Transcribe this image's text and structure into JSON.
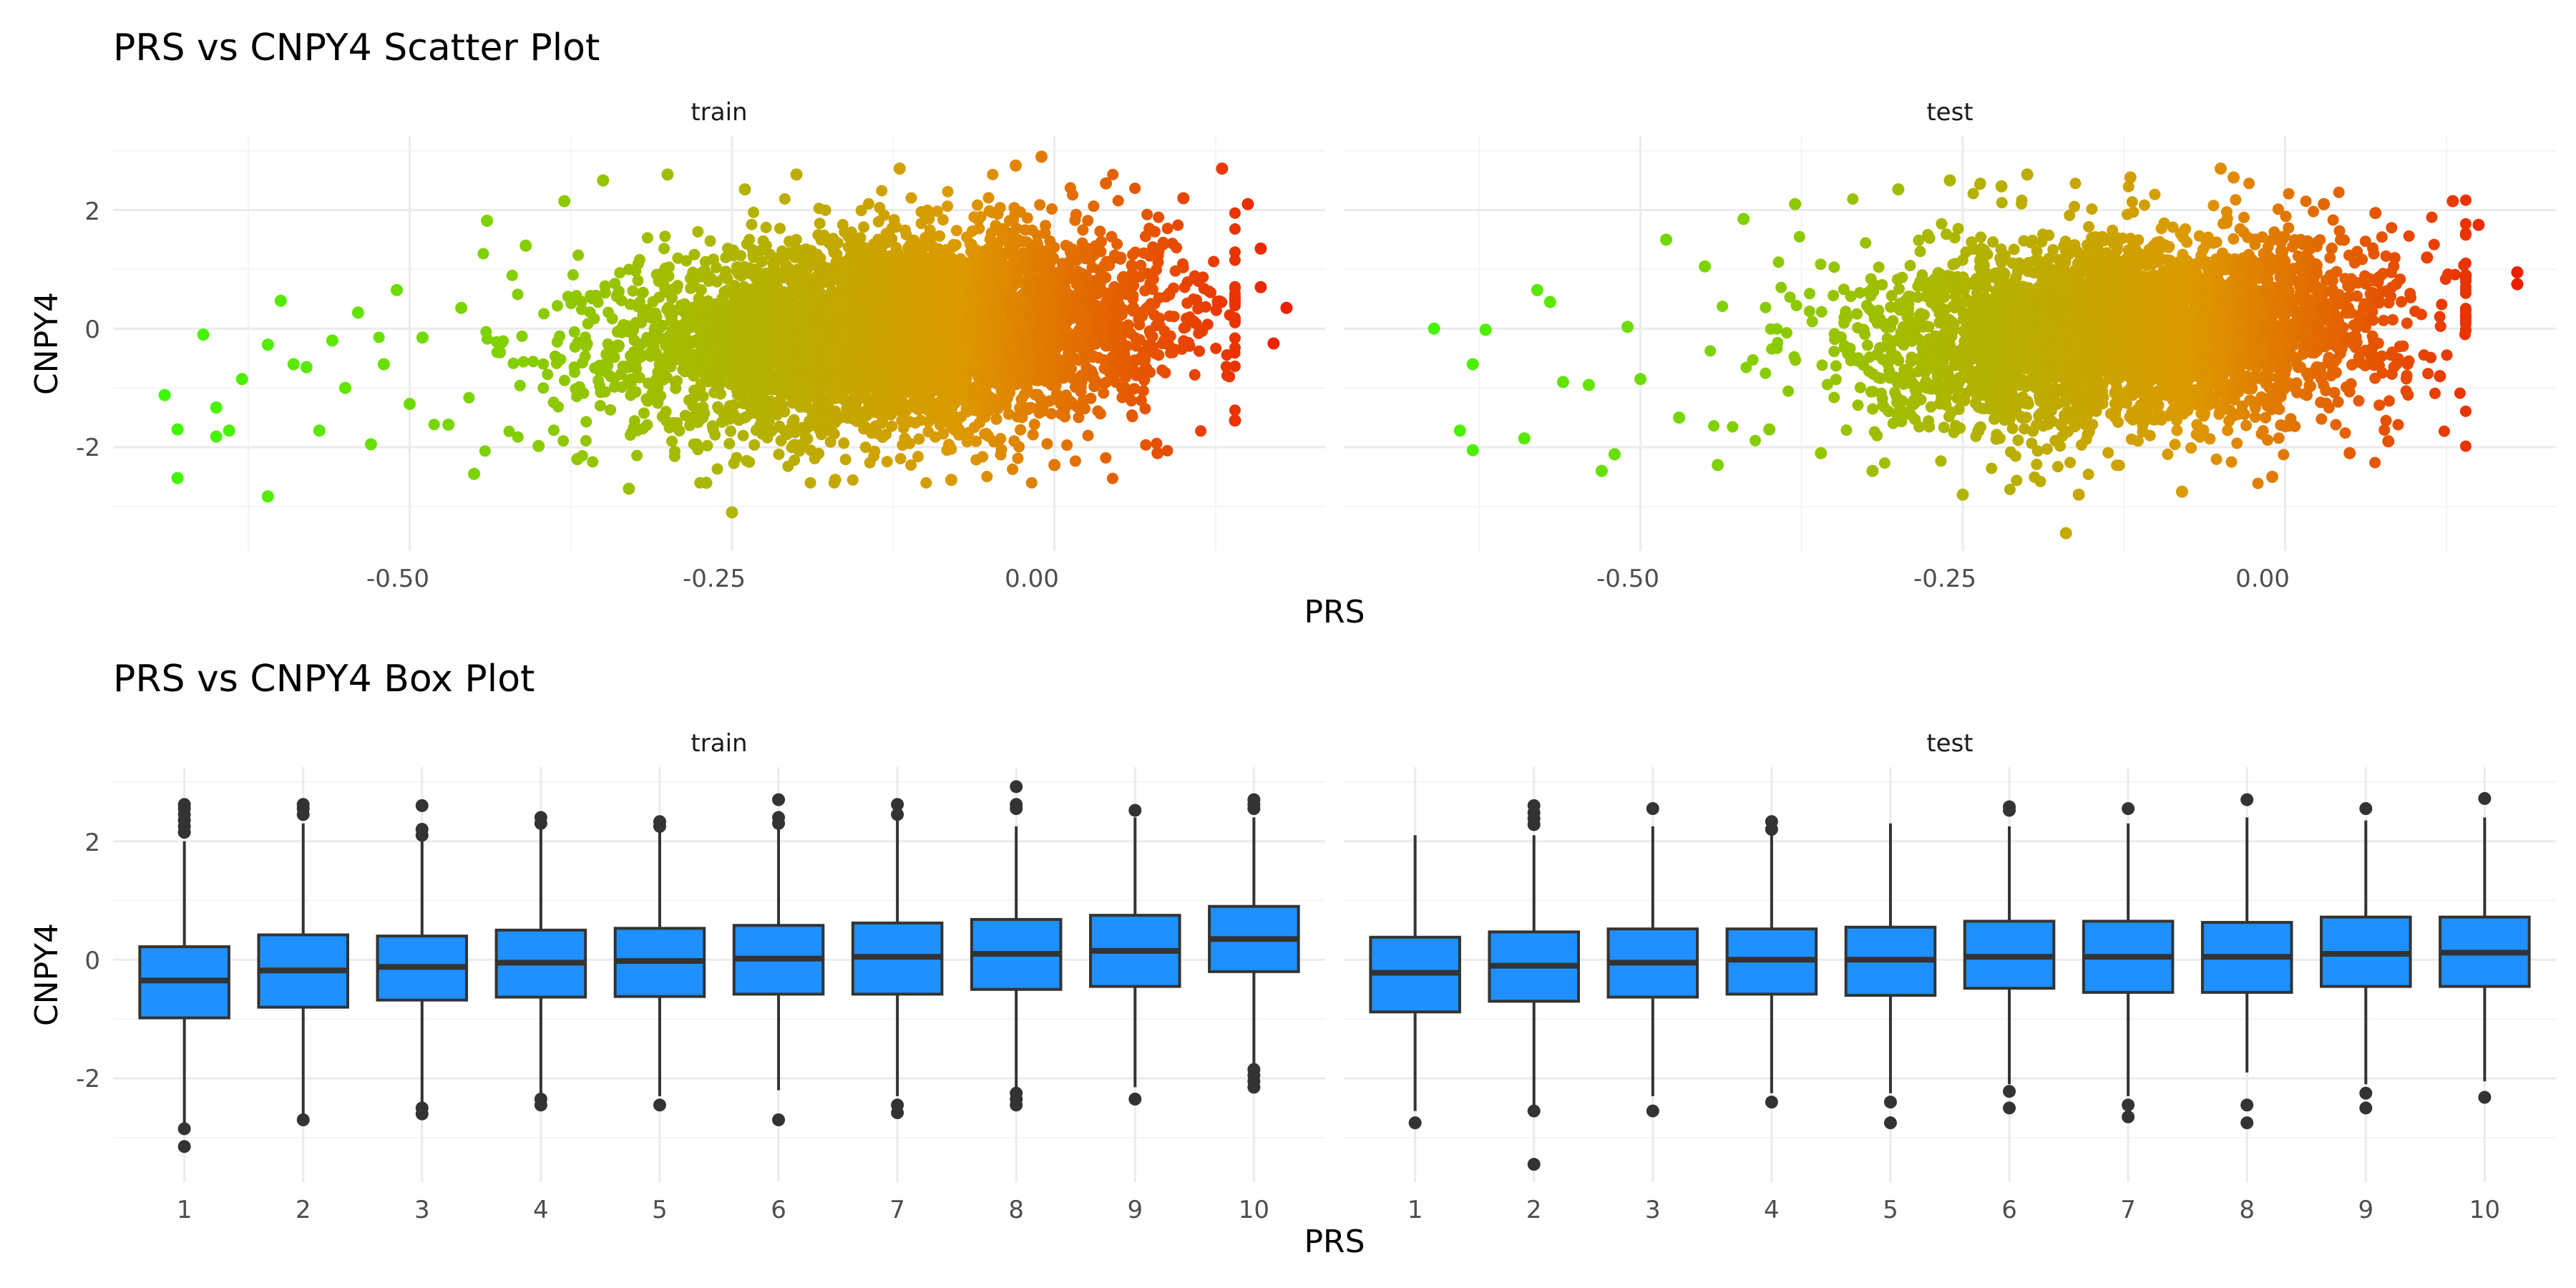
{
  "scatter": {
    "title": "PRS vs CNPY4 Scatter Plot",
    "xlabel": "PRS",
    "ylabel": "CNPY4",
    "panels": [
      {
        "label": "train"
      },
      {
        "label": "test"
      }
    ],
    "x_ticks": [
      "-0.50",
      "-0.25",
      "0.00"
    ],
    "y_ticks": [
      "-2",
      "0",
      "2"
    ]
  },
  "box": {
    "title": "PRS vs CNPY4 Box Plot",
    "xlabel": "PRS",
    "ylabel": "CNPY4",
    "panels": [
      {
        "label": "train"
      },
      {
        "label": "test"
      }
    ],
    "x_ticks": [
      "1",
      "2",
      "3",
      "4",
      "5",
      "6",
      "7",
      "8",
      "9",
      "10"
    ],
    "y_ticks": [
      "-2",
      "0",
      "2"
    ]
  },
  "chart_data": [
    {
      "type": "scatter",
      "title": "PRS vs CNPY4 Scatter Plot",
      "xlabel": "PRS",
      "ylabel": "CNPY4",
      "facets": [
        "train",
        "test"
      ],
      "xlim": [
        -0.73,
        0.21
      ],
      "ylim": [
        -3.75,
        3.25
      ],
      "grid": true,
      "color_scale": {
        "low": "#33ff00",
        "mid": "#dd9900",
        "high": "#ee1100",
        "mapped_to": "PRS"
      },
      "series": [
        {
          "facet": "train",
          "x_range": [
            -0.69,
            0.18
          ],
          "y_range": [
            -3.1,
            2.9
          ],
          "trend": "CNPY4 increases with PRS",
          "points": [
            [
              -0.69,
              -1.12
            ],
            [
              -0.68,
              -1.7
            ],
            [
              -0.68,
              -2.52
            ],
            [
              -0.66,
              -0.1
            ],
            [
              -0.65,
              -1.33
            ],
            [
              -0.65,
              -1.82
            ],
            [
              -0.64,
              -1.72
            ],
            [
              -0.63,
              -0.85
            ],
            [
              -0.61,
              -2.83
            ],
            [
              -0.61,
              -0.27
            ],
            [
              -0.6,
              0.47
            ],
            [
              -0.59,
              -0.6
            ],
            [
              -0.58,
              -0.65
            ],
            [
              -0.57,
              -1.72
            ],
            [
              -0.56,
              -0.2
            ],
            [
              -0.55,
              -1.0
            ],
            [
              -0.54,
              0.27
            ],
            [
              -0.53,
              -1.95
            ],
            [
              -0.52,
              -0.6
            ],
            [
              -0.51,
              0.65
            ],
            [
              -0.5,
              -1.27
            ],
            [
              -0.49,
              -0.15
            ],
            [
              -0.47,
              -1.62
            ],
            [
              -0.46,
              0.35
            ],
            [
              -0.45,
              -2.45
            ],
            [
              -0.44,
              1.82
            ],
            [
              -0.43,
              -0.4
            ],
            [
              -0.41,
              1.4
            ],
            [
              -0.4,
              -1.98
            ],
            [
              -0.38,
              2.15
            ],
            [
              -0.37,
              -2.2
            ],
            [
              -0.35,
              2.5
            ],
            [
              -0.33,
              -2.7
            ],
            [
              -0.3,
              2.6
            ],
            [
              -0.27,
              -2.6
            ],
            [
              -0.25,
              -3.1
            ],
            [
              -0.24,
              2.35
            ],
            [
              -0.2,
              2.6
            ],
            [
              -0.17,
              -2.55
            ],
            [
              -0.12,
              2.7
            ],
            [
              -0.08,
              -2.55
            ],
            [
              -0.03,
              2.75
            ],
            [
              -0.01,
              2.9
            ],
            [
              0.0,
              -2.3
            ],
            [
              0.04,
              2.45
            ],
            [
              0.08,
              -2.1
            ],
            [
              0.1,
              2.2
            ],
            [
              0.13,
              2.7
            ],
            [
              0.14,
              -1.55
            ],
            [
              0.15,
              2.1
            ],
            [
              0.16,
              1.35
            ],
            [
              0.16,
              0.7
            ],
            [
              0.17,
              -0.25
            ],
            [
              0.18,
              0.35
            ]
          ]
        },
        {
          "facet": "test",
          "x_range": [
            -0.66,
            0.18
          ],
          "y_range": [
            -3.45,
            2.75
          ],
          "trend": "CNPY4 increases with PRS",
          "points": [
            [
              -0.66,
              0.0
            ],
            [
              -0.64,
              -1.72
            ],
            [
              -0.63,
              -2.05
            ],
            [
              -0.63,
              -0.6
            ],
            [
              -0.62,
              -0.02
            ],
            [
              -0.59,
              -1.85
            ],
            [
              -0.58,
              0.65
            ],
            [
              -0.57,
              0.45
            ],
            [
              -0.56,
              -0.9
            ],
            [
              -0.54,
              -0.95
            ],
            [
              -0.53,
              -2.4
            ],
            [
              -0.52,
              -2.12
            ],
            [
              -0.51,
              0.03
            ],
            [
              -0.5,
              -0.85
            ],
            [
              -0.48,
              1.5
            ],
            [
              -0.47,
              -1.5
            ],
            [
              -0.45,
              1.05
            ],
            [
              -0.44,
              -2.3
            ],
            [
              -0.42,
              1.85
            ],
            [
              -0.4,
              -1.7
            ],
            [
              -0.38,
              2.1
            ],
            [
              -0.36,
              -2.1
            ],
            [
              -0.32,
              -2.4
            ],
            [
              -0.3,
              2.35
            ],
            [
              -0.26,
              2.5
            ],
            [
              -0.25,
              -2.8
            ],
            [
              -0.22,
              2.4
            ],
            [
              -0.2,
              2.6
            ],
            [
              -0.17,
              -3.45
            ],
            [
              -0.16,
              -2.8
            ],
            [
              -0.12,
              2.55
            ],
            [
              -0.08,
              -2.75
            ],
            [
              -0.05,
              2.7
            ],
            [
              -0.04,
              2.55
            ],
            [
              -0.01,
              -2.5
            ],
            [
              0.03,
              2.1
            ],
            [
              0.05,
              -2.1
            ],
            [
              0.07,
              1.95
            ],
            [
              0.08,
              -1.9
            ],
            [
              0.11,
              1.2
            ],
            [
              0.12,
              -0.8
            ],
            [
              0.13,
              2.15
            ],
            [
              0.14,
              0.9
            ],
            [
              0.15,
              1.75
            ],
            [
              0.18,
              0.95
            ],
            [
              0.18,
              0.75
            ]
          ]
        }
      ]
    },
    {
      "type": "box",
      "title": "PRS vs CNPY4 Box Plot",
      "xlabel": "PRS",
      "ylabel": "CNPY4",
      "facets": [
        "train",
        "test"
      ],
      "categories": [
        "1",
        "2",
        "3",
        "4",
        "5",
        "6",
        "7",
        "8",
        "9",
        "10"
      ],
      "ylim": [
        -3.75,
        3.25
      ],
      "grid": true,
      "box_color": "#1e90ff",
      "series": [
        {
          "facet": "train",
          "boxes": [
            {
              "q1": -0.98,
              "median": -0.35,
              "q3": 0.22,
              "whisker_low": -2.75,
              "whisker_high": 2.0,
              "outliers": [
                2.15,
                2.25,
                2.35,
                2.45,
                2.55,
                2.62,
                -2.85,
                -3.15
              ]
            },
            {
              "q1": -0.8,
              "median": -0.18,
              "q3": 0.42,
              "whisker_low": -2.6,
              "whisker_high": 2.3,
              "outliers": [
                2.45,
                2.55,
                2.62,
                -2.7
              ]
            },
            {
              "q1": -0.68,
              "median": -0.12,
              "q3": 0.4,
              "whisker_low": -2.4,
              "whisker_high": 2.05,
              "outliers": [
                2.1,
                2.2,
                2.6,
                -2.5,
                -2.6
              ]
            },
            {
              "q1": -0.63,
              "median": -0.05,
              "q3": 0.5,
              "whisker_low": -2.25,
              "whisker_high": 2.25,
              "outliers": [
                2.3,
                2.4,
                -2.35,
                -2.45
              ]
            },
            {
              "q1": -0.62,
              "median": -0.02,
              "q3": 0.53,
              "whisker_low": -2.3,
              "whisker_high": 2.15,
              "outliers": [
                2.25,
                2.33,
                -2.45
              ]
            },
            {
              "q1": -0.58,
              "median": 0.02,
              "q3": 0.58,
              "whisker_low": -2.2,
              "whisker_high": 2.2,
              "outliers": [
                2.3,
                2.4,
                2.7,
                -2.7
              ]
            },
            {
              "q1": -0.58,
              "median": 0.05,
              "q3": 0.62,
              "whisker_low": -2.3,
              "whisker_high": 2.35,
              "outliers": [
                2.45,
                2.62,
                -2.45,
                -2.58
              ]
            },
            {
              "q1": -0.5,
              "median": 0.1,
              "q3": 0.68,
              "whisker_low": -2.15,
              "whisker_high": 2.25,
              "outliers": [
                2.55,
                2.62,
                2.92,
                -2.25,
                -2.35,
                -2.45
              ]
            },
            {
              "q1": -0.45,
              "median": 0.15,
              "q3": 0.75,
              "whisker_low": -2.15,
              "whisker_high": 2.4,
              "outliers": [
                2.52,
                -2.35
              ]
            },
            {
              "q1": -0.2,
              "median": 0.35,
              "q3": 0.9,
              "whisker_low": -1.75,
              "whisker_high": 2.4,
              "outliers": [
                2.55,
                2.62,
                2.7,
                -1.85,
                -1.95,
                -2.05,
                -2.15
              ]
            }
          ]
        },
        {
          "facet": "test",
          "boxes": [
            {
              "q1": -0.88,
              "median": -0.22,
              "q3": 0.38,
              "whisker_low": -2.55,
              "whisker_high": 2.1,
              "outliers": [
                -2.75
              ]
            },
            {
              "q1": -0.7,
              "median": -0.1,
              "q3": 0.47,
              "whisker_low": -2.45,
              "whisker_high": 2.1,
              "outliers": [
                2.28,
                2.38,
                2.48,
                2.6,
                -2.55,
                -3.45
              ]
            },
            {
              "q1": -0.63,
              "median": -0.05,
              "q3": 0.52,
              "whisker_low": -2.3,
              "whisker_high": 2.25,
              "outliers": [
                2.55,
                -2.55
              ]
            },
            {
              "q1": -0.58,
              "median": 0.0,
              "q3": 0.52,
              "whisker_low": -2.25,
              "whisker_high": 2.1,
              "outliers": [
                2.2,
                2.33,
                -2.4
              ]
            },
            {
              "q1": -0.6,
              "median": 0.0,
              "q3": 0.55,
              "whisker_low": -2.25,
              "whisker_high": 2.3,
              "outliers": [
                -2.4,
                -2.75
              ]
            },
            {
              "q1": -0.48,
              "median": 0.05,
              "q3": 0.65,
              "whisker_low": -2.1,
              "whisker_high": 2.25,
              "outliers": [
                2.52,
                2.58,
                -2.22,
                -2.5
              ]
            },
            {
              "q1": -0.55,
              "median": 0.05,
              "q3": 0.65,
              "whisker_low": -2.3,
              "whisker_high": 2.3,
              "outliers": [
                2.55,
                -2.45,
                -2.65
              ]
            },
            {
              "q1": -0.55,
              "median": 0.05,
              "q3": 0.63,
              "whisker_low": -1.9,
              "whisker_high": 2.4,
              "outliers": [
                2.7,
                -2.45,
                -2.75
              ]
            },
            {
              "q1": -0.45,
              "median": 0.1,
              "q3": 0.72,
              "whisker_low": -2.1,
              "whisker_high": 2.35,
              "outliers": [
                2.55,
                -2.25,
                -2.5
              ]
            },
            {
              "q1": -0.45,
              "median": 0.12,
              "q3": 0.72,
              "whisker_low": -2.05,
              "whisker_high": 2.4,
              "outliers": [
                2.72,
                -2.32
              ]
            }
          ]
        }
      ]
    }
  ]
}
